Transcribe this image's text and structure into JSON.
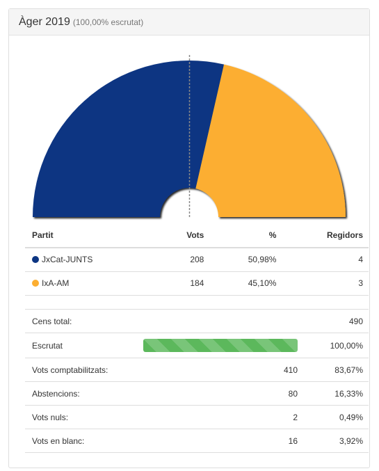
{
  "header": {
    "title": "Àger 2019",
    "subtitle": "(100,00% escrutat)"
  },
  "chart_data": {
    "type": "pie",
    "variant": "semicircle",
    "seats_total": 7,
    "majority_marker": true,
    "slices": [
      {
        "label": "JxCat-JUNTS",
        "seats": 4,
        "color": "#0c3582"
      },
      {
        "label": "IxA-AM",
        "seats": 3,
        "color": "#fcae31"
      }
    ]
  },
  "results": {
    "headers": {
      "party": "Partit",
      "votes": "Vots",
      "pct": "%",
      "seats": "Regidors"
    },
    "rows": [
      {
        "party": "JxCat-JUNTS",
        "votes": "208",
        "pct": "50,98%",
        "seats": "4",
        "color": "#0c3582"
      },
      {
        "party": "IxA-AM",
        "votes": "184",
        "pct": "45,10%",
        "seats": "3",
        "color": "#fcae31"
      }
    ]
  },
  "stats": {
    "census": {
      "label": "Cens total:",
      "value": "490"
    },
    "counted": {
      "label": "Escrutat",
      "value": "100,00%",
      "progress": 1.0,
      "color": "#5cb85c"
    },
    "valid_votes": {
      "label": "Vots comptabilitzats:",
      "count": "410",
      "pct": "83,67%"
    },
    "abstentions": {
      "label": "Abstencions:",
      "count": "80",
      "pct": "16,33%"
    },
    "null_votes": {
      "label": "Vots nuls:",
      "count": "2",
      "pct": "0,49%"
    },
    "blank_votes": {
      "label": "Vots en blanc:",
      "count": "16",
      "pct": "3,92%"
    }
  }
}
